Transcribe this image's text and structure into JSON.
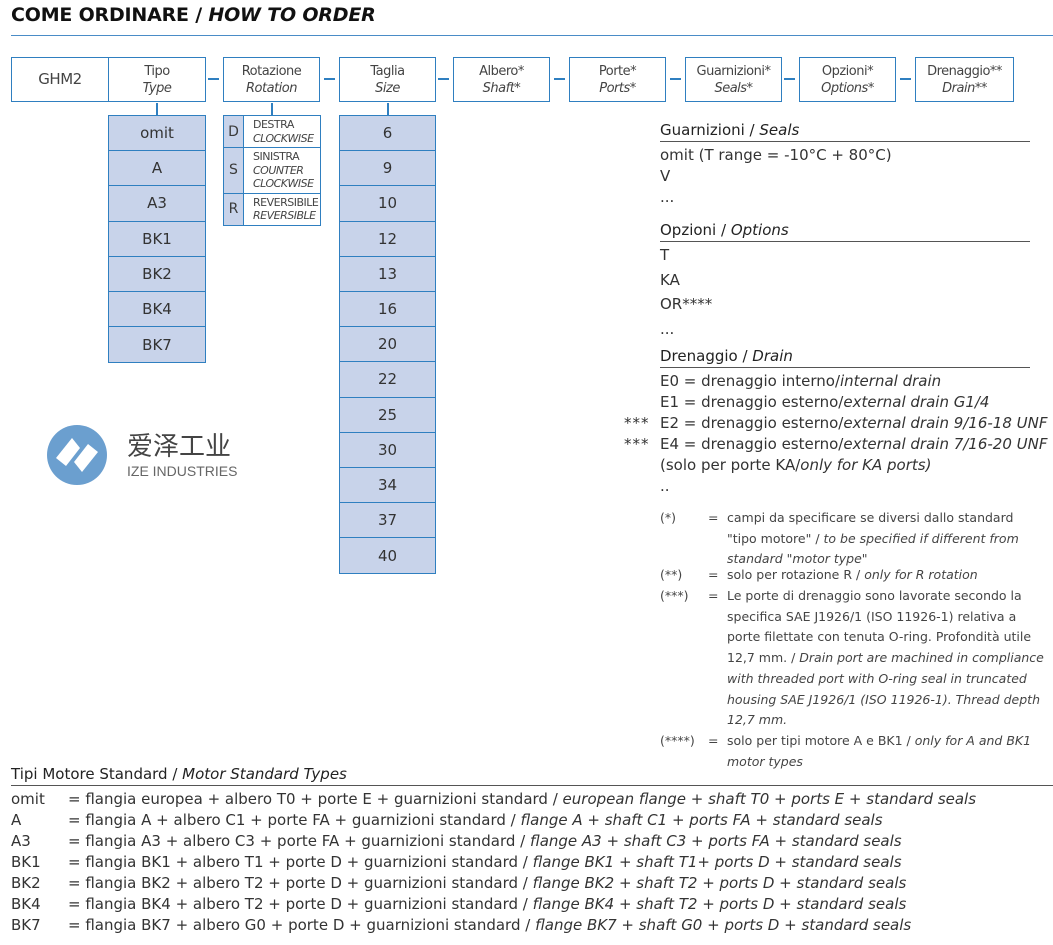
{
  "title": {
    "it": "COME ORDINARE / ",
    "en": "HOW TO ORDER"
  },
  "code_header": {
    "model": "GHM2",
    "fields": [
      {
        "it": "Tipo",
        "en": "Type"
      },
      {
        "it": "Rotazione",
        "en": "Rotation"
      },
      {
        "it": "Taglia",
        "en": "Size"
      },
      {
        "it": "Albero*",
        "en": "Shaft*"
      },
      {
        "it": "Porte*",
        "en": "Ports*"
      },
      {
        "it": "Guarnizioni*",
        "en": "Seals*"
      },
      {
        "it": "Opzioni*",
        "en": "Options*"
      },
      {
        "it": "Drenaggio**",
        "en": "Drain**"
      }
    ]
  },
  "types": [
    "omit",
    "A",
    "A3",
    "BK1",
    "BK2",
    "BK4",
    "BK7"
  ],
  "rotations": [
    {
      "code": "D",
      "it": "DESTRA",
      "en": [
        "CLOCKWISE"
      ]
    },
    {
      "code": "S",
      "it": "SINISTRA",
      "en": [
        "COUNTER",
        "CLOCKWISE"
      ]
    },
    {
      "code": "R",
      "it": "REVERSIBILE",
      "en": [
        "REVERSIBLE"
      ]
    }
  ],
  "sizes": [
    "6",
    "9",
    "10",
    "12",
    "13",
    "16",
    "20",
    "22",
    "25",
    "30",
    "34",
    "37",
    "40"
  ],
  "seals": {
    "heading_it": "Guarnizioni / ",
    "heading_en": "Seals",
    "items": [
      "omit (T range = -10°C + 80°C)",
      "V",
      "..."
    ]
  },
  "options": {
    "heading_it": "Opzioni / ",
    "heading_en": "Options",
    "items": [
      "T",
      "KA",
      "OR****",
      "..."
    ]
  },
  "drain": {
    "heading_it": "Drenaggio / ",
    "heading_en": "Drain",
    "items": [
      {
        "mark": "",
        "it": "E0 = drenaggio interno/",
        "en": "internal drain"
      },
      {
        "mark": "",
        "it": "E1 = drenaggio esterno/",
        "en": "external drain G1/4"
      },
      {
        "mark": "***",
        "it": "E2 = drenaggio esterno/",
        "en": "external drain 9/16-18 UNF"
      },
      {
        "mark": "***",
        "it": "E4 = drenaggio esterno/",
        "en": "external drain 7/16-20 UNF"
      },
      {
        "mark": "",
        "it": "(solo per porte KA/",
        "en": "only for KA ports)"
      },
      {
        "mark": "",
        "it": "..",
        "en": ""
      }
    ]
  },
  "notes": [
    {
      "mark": "(*)",
      "it": "campi da specificare se diversi dallo standard \"tipo motore\" / ",
      "en": "to be specified if different from standard \"motor type\""
    },
    {
      "mark": "(**)",
      "it": "solo per rotazione R / ",
      "en": "only for R rotation"
    },
    {
      "mark": "(***)",
      "it": "Le porte di drenaggio sono lavorate secondo la specifica SAE J1926/1 (ISO 11926-1) relativa a porte filettate con tenuta O-ring. Profondità utile 12,7 mm. / ",
      "en": "Drain port are machined in compliance with threaded port with O-ring seal in truncated housing SAE J1926/1 (ISO 11926-1). Thread depth 12,7 mm."
    },
    {
      "mark": "(****)",
      "it": "solo per tipi motore A e BK1 / ",
      "en": "only for A and BK1 motor types"
    }
  ],
  "logo": {
    "cn": "爱泽工业",
    "en": "IZE INDUSTRIES"
  },
  "standard_types": {
    "heading_it": "Tipi Motore Standard / ",
    "heading_en": "Motor Standard Types",
    "rows": [
      {
        "code": "omit",
        "it": "= flangia europea + albero T0 + porte E + guarnizioni standard / ",
        "en": "european flange + shaft T0 + ports E + standard seals"
      },
      {
        "code": "A",
        "it": "= flangia A + albero C1 + porte FA + guarnizioni standard / ",
        "en": "flange A + shaft C1 + ports FA + standard seals"
      },
      {
        "code": "A3",
        "it": "= flangia A3 + albero C3 + porte FA + guarnizioni standard / ",
        "en": "flange A3 + shaft C3 + ports FA + standard seals"
      },
      {
        "code": "BK1",
        "it": "= flangia BK1 + albero T1 + porte D + guarnizioni standard / ",
        "en": "flange BK1 + shaft T1+ ports D + standard seals"
      },
      {
        "code": "BK2",
        "it": "= flangia BK2 + albero T2 + porte D + guarnizioni standard / ",
        "en": "flange BK2 + shaft T2 + ports D + standard seals"
      },
      {
        "code": "BK4",
        "it": "= flangia BK4 + albero T2 + porte D + guarnizioni standard / ",
        "en": "flange BK4 + shaft T2 + ports D + standard seals"
      },
      {
        "code": "BK7",
        "it": "= flangia BK7 + albero G0 + porte D + guarnizioni standard / ",
        "en": "flange BK7 + shaft G0 + ports D + standard seals"
      }
    ]
  },
  "colors": {
    "accent": "#2f7fc0",
    "cell_fill": "#c8d3ea",
    "logo": "#6b9fcf"
  }
}
